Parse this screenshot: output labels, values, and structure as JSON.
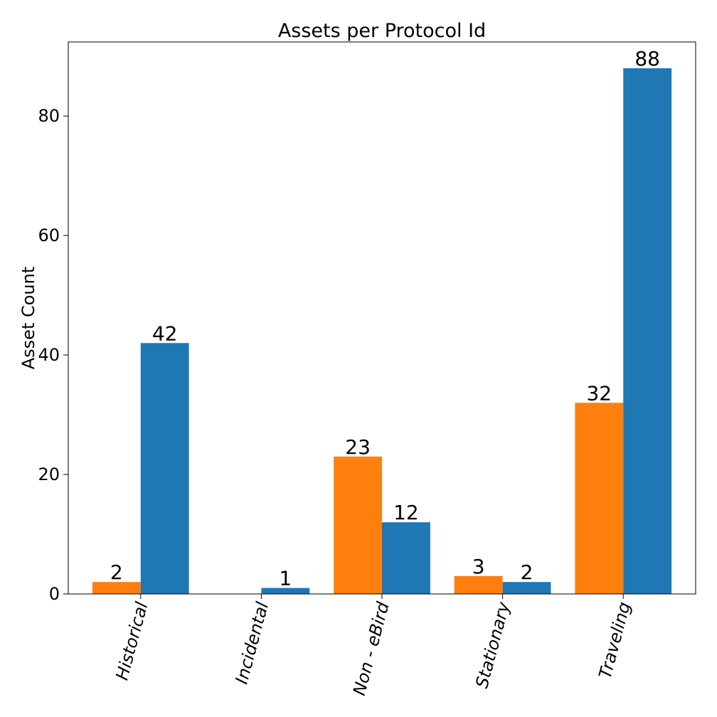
{
  "chart_data": {
    "type": "bar",
    "title": "Assets per Protocol Id",
    "xlabel": "",
    "ylabel": "Asset Count",
    "categories": [
      "Historical",
      "Incidental",
      "Non - eBird",
      "Stationary",
      "Traveling"
    ],
    "series": [
      {
        "color": "#ff7f0e",
        "values": [
          2,
          0,
          23,
          3,
          32
        ],
        "labels": [
          "2",
          "",
          "23",
          "3",
          "32"
        ]
      },
      {
        "color": "#1f77b4",
        "values": [
          42,
          1,
          12,
          2,
          88
        ],
        "labels": [
          "42",
          "1",
          "12",
          "2",
          "88"
        ]
      }
    ],
    "ylim": [
      0,
      92.4
    ],
    "yticks": [
      0,
      20,
      40,
      60,
      80
    ],
    "grid": false,
    "legend": "none"
  }
}
